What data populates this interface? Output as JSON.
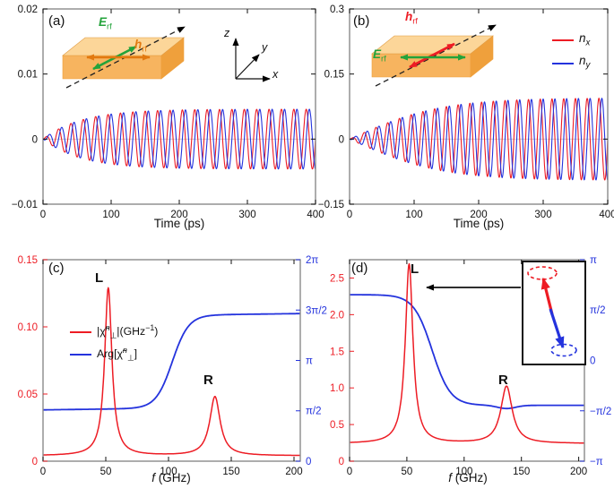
{
  "colors": {
    "red": "#ed1c24",
    "blue": "#2433dd",
    "green": "#23a33b",
    "orange": "#e2790f",
    "frame": "#8a8a8a",
    "zero_line": "#c8c8c8",
    "slab_top": "#fcd699",
    "slab_front": "#f7b45f",
    "slab_side": "#efa03c",
    "text": "#111111"
  },
  "chart_data": [
    {
      "panel": "a",
      "tag": "(a)",
      "type": "line",
      "xlabel": "Time (ps)",
      "x": {
        "min": 0,
        "max": 400,
        "ticks": [
          {
            "v": 0,
            "l": "0"
          },
          {
            "v": 100,
            "l": "100"
          },
          {
            "v": 200,
            "l": "200"
          },
          {
            "v": 300,
            "l": "300"
          },
          {
            "v": 400,
            "l": "400"
          }
        ]
      },
      "y": {
        "min": -0.01,
        "max": 0.02,
        "ticks": [
          {
            "v": -0.01,
            "l": "−0.01"
          },
          {
            "v": 0,
            "l": "0"
          },
          {
            "v": 0.01,
            "l": "0.01"
          },
          {
            "v": 0.02,
            "l": "0.02"
          }
        ]
      },
      "series": [
        {
          "name": "nx",
          "color": "red",
          "model": "growing_sine",
          "freq_GHz": 55,
          "amplitude": 0.0046,
          "rise_ps": 55,
          "envelope": "exp_saturation",
          "phase_deg": 0
        },
        {
          "name": "ny",
          "color": "blue",
          "model": "growing_sine",
          "freq_GHz": 55,
          "amplitude": 0.0046,
          "rise_ps": 55,
          "envelope": "exp_saturation",
          "phase_deg": -90
        }
      ],
      "inset": {
        "E_main": "E",
        "E_sub": "rf",
        "h_main": "h",
        "h_sub": "rf",
        "axis_z": "z",
        "axis_y": "y",
        "axis_x": "x"
      }
    },
    {
      "panel": "b",
      "tag": "(b)",
      "type": "line",
      "xlabel": "Time (ps)",
      "x": {
        "min": 0,
        "max": 400,
        "ticks": [
          {
            "v": 0,
            "l": "0"
          },
          {
            "v": 100,
            "l": "100"
          },
          {
            "v": 200,
            "l": "200"
          },
          {
            "v": 300,
            "l": "300"
          },
          {
            "v": 400,
            "l": "400"
          }
        ]
      },
      "y": {
        "min": -0.15,
        "max": 0.3,
        "ticks": [
          {
            "v": -0.15,
            "l": "−0.15"
          },
          {
            "v": 0,
            "l": "0"
          },
          {
            "v": 0.15,
            "l": "0.15"
          },
          {
            "v": 0.3,
            "l": "0.3"
          }
        ]
      },
      "series": [
        {
          "name": "nx",
          "color": "red",
          "model": "growing_sine",
          "freq_GHz": 55,
          "amplitude": 0.095,
          "rise_ps": 140,
          "envelope": "tanh_saturation",
          "phase_deg": 0
        },
        {
          "name": "ny",
          "color": "blue",
          "model": "growing_sine",
          "freq_GHz": 55,
          "amplitude": 0.095,
          "rise_ps": 140,
          "envelope": "tanh_saturation",
          "phase_deg": -90
        }
      ],
      "legend": [
        {
          "main": "n",
          "sub": "x",
          "color": "red"
        },
        {
          "main": "n",
          "sub": "y",
          "color": "blue"
        }
      ],
      "inset": {
        "E_main": "E",
        "E_sub": "rf",
        "h_main": "h",
        "h_sub": "rf"
      }
    },
    {
      "panel": "c",
      "tag": "(c)",
      "type": "line_dual_axis",
      "xlabel_f": "f",
      "xlabel_unit": " (GHz)",
      "x": {
        "min": 0,
        "max": 205,
        "ticks": [
          {
            "v": 0,
            "l": "0"
          },
          {
            "v": 50,
            "l": "50"
          },
          {
            "v": 100,
            "l": "100"
          },
          {
            "v": 150,
            "l": "150"
          },
          {
            "v": 200,
            "l": "200"
          }
        ]
      },
      "y_left": {
        "color": "red",
        "min": 0,
        "max": 0.15,
        "ticks": [
          {
            "v": 0,
            "l": "0"
          },
          {
            "v": 0.05,
            "l": "0.05"
          },
          {
            "v": 0.1,
            "l": "0.10"
          },
          {
            "v": 0.15,
            "l": "0.15"
          }
        ]
      },
      "y_right": {
        "color": "blue",
        "min": 0,
        "max": 6.28319,
        "ticks": [
          {
            "v": 0,
            "l": "0"
          },
          {
            "v": 1.5708,
            "l": "π/2"
          },
          {
            "v": 3.14159,
            "l": "π"
          },
          {
            "v": 4.71239,
            "l": "3π/2"
          },
          {
            "v": 6.28319,
            "l": "2π"
          }
        ]
      },
      "amplitude_curve": {
        "color": "red",
        "baseline": 0.004,
        "peaks": [
          {
            "label": "L",
            "f0_GHz": 52,
            "width_GHz": 3.5,
            "height": 0.125
          },
          {
            "label": "R",
            "f0_GHz": 137,
            "width_GHz": 5,
            "height": 0.044
          }
        ]
      },
      "phase_curve": {
        "color": "blue",
        "start_rad": 1.6,
        "slope_rad_per_GHz": 0.0005,
        "step_rad": 2.9,
        "step_center_GHz": 103,
        "step_width_GHz": 6.5
      },
      "legend": {
        "amp": {
          "pre": "|χ̃",
          "sup": "n",
          "sub": "⊥",
          "post": "|(GHz",
          "exp": "−1",
          "close": ")"
        },
        "arg": {
          "pre": "Arg[χ̃",
          "sup": "n",
          "sub": "⊥",
          "post": "]"
        }
      },
      "annotations": {
        "L": "L",
        "R": "R"
      }
    },
    {
      "panel": "d",
      "tag": "(d)",
      "type": "line_dual_axis",
      "xlabel_f": "f",
      "xlabel_unit": " (GHz)",
      "x": {
        "min": 0,
        "max": 205,
        "ticks": [
          {
            "v": 0,
            "l": "0"
          },
          {
            "v": 50,
            "l": "50"
          },
          {
            "v": 100,
            "l": "100"
          },
          {
            "v": 150,
            "l": "150"
          },
          {
            "v": 200,
            "l": "200"
          }
        ]
      },
      "y_left": {
        "color": "red",
        "min": 0,
        "max": 2.75,
        "ticks": [
          {
            "v": 0,
            "l": "0"
          },
          {
            "v": 0.5,
            "l": "0.5"
          },
          {
            "v": 1,
            "l": "1.0"
          },
          {
            "v": 1.5,
            "l": "1.5"
          },
          {
            "v": 2,
            "l": "2.0"
          },
          {
            "v": 2.5,
            "l": "2.5"
          }
        ]
      },
      "y_right": {
        "color": "blue",
        "min": -3.14159,
        "max": 3.14159,
        "ticks": [
          {
            "v": 3.14159,
            "l": "π"
          },
          {
            "v": 1.5708,
            "l": "π/2"
          },
          {
            "v": 0,
            "l": "0"
          },
          {
            "v": -1.5708,
            "l": "−π/2"
          },
          {
            "v": -3.14159,
            "l": "−π"
          }
        ]
      },
      "amplitude_curve": {
        "color": "red",
        "baseline": 0.24,
        "peaks": [
          {
            "label": "L",
            "f0_GHz": 52,
            "width_GHz": 4,
            "height": 2.45
          },
          {
            "label": "R",
            "f0_GHz": 137,
            "width_GHz": 6,
            "height": 0.78
          }
        ]
      },
      "phase_curve": {
        "color": "blue",
        "start_rad": 2.05,
        "slope_rad_per_GHz": 0,
        "step_rad": -3.45,
        "step_center_GHz": 72,
        "step_width_GHz": 8,
        "dip": {
          "f0_GHz": 137,
          "width_GHz": 8,
          "depth": 0.1
        }
      },
      "annotations": {
        "L": "L",
        "R": "R"
      }
    }
  ]
}
